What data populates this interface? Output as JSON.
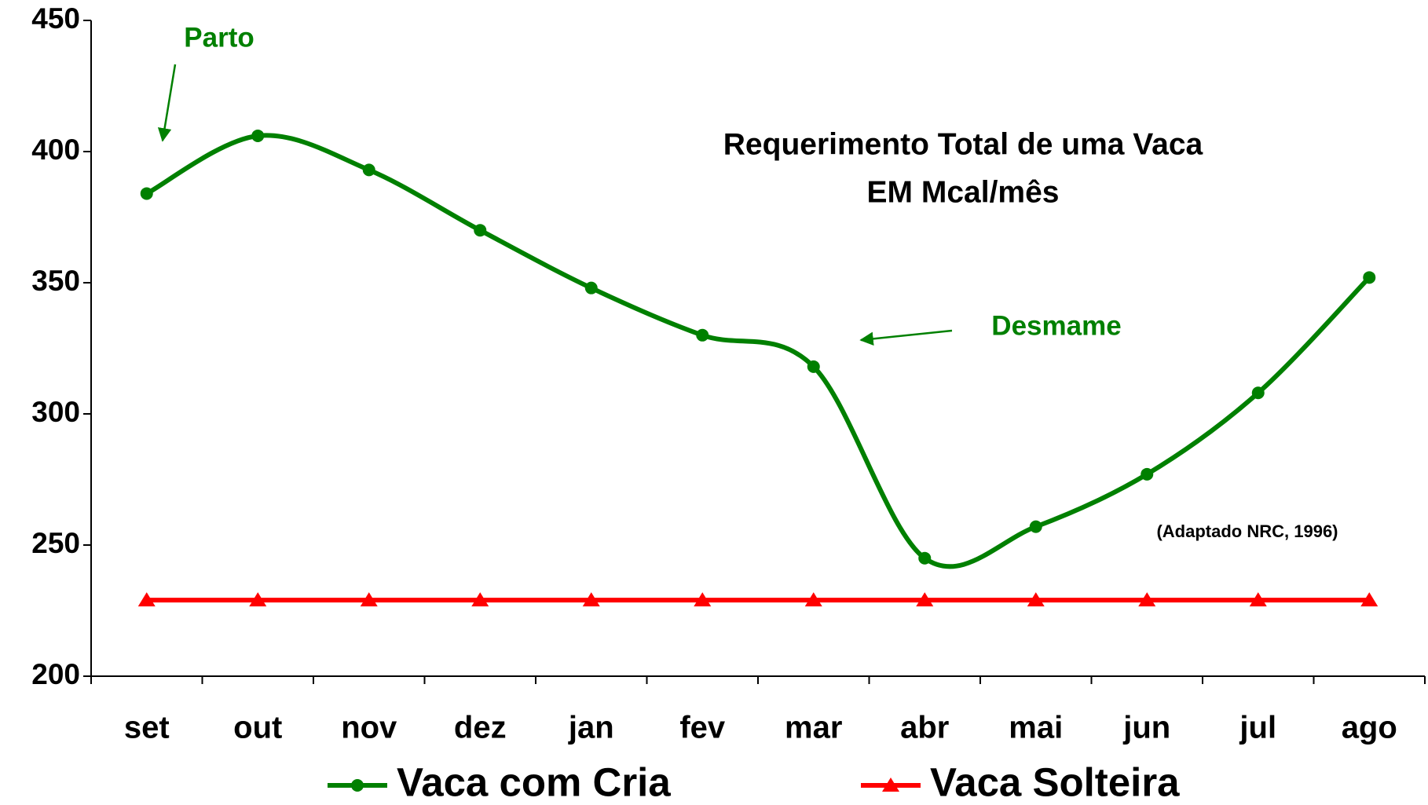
{
  "chart_data": {
    "type": "line",
    "title": "Requerimento Total de uma Vaca",
    "subtitle": "EM Mcal/mês",
    "categories": [
      "set",
      "out",
      "nov",
      "dez",
      "jan",
      "fev",
      "mar",
      "abr",
      "mai",
      "jun",
      "jul",
      "ago"
    ],
    "series": [
      {
        "name": "Vaca com Cria",
        "color": "#008000",
        "marker": "circle",
        "smooth": true,
        "values": [
          384,
          406,
          393,
          370,
          348,
          330,
          318,
          245,
          257,
          277,
          308,
          352
        ]
      },
      {
        "name": "Vaca Solteira",
        "color": "#ff0000",
        "marker": "triangle",
        "smooth": false,
        "values": [
          229,
          229,
          229,
          229,
          229,
          229,
          229,
          229,
          229,
          229,
          229,
          229
        ]
      }
    ],
    "ylim": [
      200,
      450
    ],
    "yticks": [
      200,
      250,
      300,
      350,
      400,
      450
    ],
    "grid": false,
    "legend": "bottom",
    "annotations": [
      "Parto",
      "Desmame",
      "(Adaptado NRC, 1996)"
    ]
  }
}
